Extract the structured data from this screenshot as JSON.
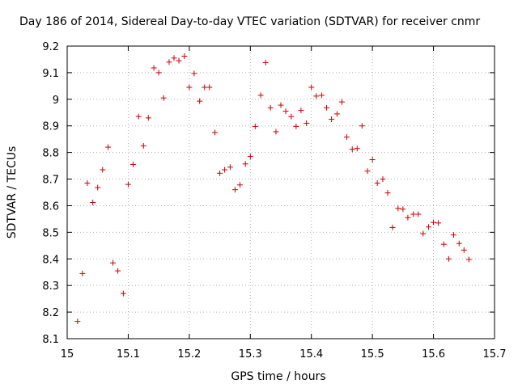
{
  "chart_data": {
    "type": "scatter",
    "title": "Day 186 of 2014, Sidereal Day-to-day VTEC variation (SDTVAR) for receiver cnmr",
    "xlabel": "GPS time / hours",
    "ylabel": "SDTVAR / TECUs",
    "xlim": [
      15.0,
      15.7
    ],
    "ylim": [
      8.1,
      9.2
    ],
    "xticks": [
      15.0,
      15.1,
      15.2,
      15.3,
      15.4,
      15.5,
      15.6,
      15.7
    ],
    "xtick_labels": [
      "15",
      "15.1",
      "15.2",
      "15.3",
      "15.4",
      "15.5",
      "15.6",
      "15.7"
    ],
    "yticks": [
      8.1,
      8.2,
      8.3,
      8.4,
      8.5,
      8.6,
      8.7,
      8.8,
      8.9,
      9.0,
      9.1,
      9.2
    ],
    "ytick_labels": [
      "8.1",
      "8.2",
      "8.3",
      "8.4",
      "8.5",
      "8.6",
      "8.7",
      "8.8",
      "8.9",
      "9",
      "9.1",
      "9.2"
    ],
    "grid": true,
    "marker": "+",
    "color": "#cc0000",
    "series": [
      {
        "name": "SDTVAR",
        "x": [
          15.017,
          15.025,
          15.033,
          15.042,
          15.05,
          15.058,
          15.067,
          15.075,
          15.083,
          15.092,
          15.1,
          15.108,
          15.117,
          15.125,
          15.133,
          15.142,
          15.15,
          15.158,
          15.167,
          15.175,
          15.183,
          15.192,
          15.2,
          15.208,
          15.217,
          15.225,
          15.233,
          15.242,
          15.25,
          15.258,
          15.267,
          15.275,
          15.283,
          15.292,
          15.3,
          15.308,
          15.317,
          15.325,
          15.333,
          15.342,
          15.35,
          15.358,
          15.367,
          15.375,
          15.383,
          15.392,
          15.4,
          15.408,
          15.417,
          15.425,
          15.433,
          15.442,
          15.45,
          15.458,
          15.467,
          15.475,
          15.483,
          15.492,
          15.5,
          15.508,
          15.517,
          15.525,
          15.533,
          15.542,
          15.55,
          15.558,
          15.567,
          15.575,
          15.583,
          15.592,
          15.6,
          15.608,
          15.617,
          15.625,
          15.633,
          15.642,
          15.65,
          15.658
        ],
        "y": [
          8.165,
          8.345,
          8.685,
          8.612,
          8.668,
          8.735,
          8.82,
          8.385,
          8.355,
          8.27,
          8.68,
          8.755,
          8.935,
          8.825,
          8.93,
          9.118,
          9.1,
          9.005,
          9.14,
          9.155,
          9.145,
          9.162,
          9.045,
          9.097,
          8.993,
          9.045,
          9.045,
          8.875,
          8.722,
          8.735,
          8.745,
          8.66,
          8.678,
          8.757,
          8.785,
          8.898,
          9.015,
          9.138,
          8.968,
          8.878,
          8.978,
          8.955,
          8.935,
          8.898,
          8.958,
          8.91,
          9.045,
          9.012,
          9.015,
          8.968,
          8.925,
          8.945,
          8.99,
          8.858,
          8.812,
          8.815,
          8.9,
          8.73,
          8.773,
          8.685,
          8.7,
          8.648,
          8.518,
          8.59,
          8.587,
          8.555,
          8.568,
          8.568,
          8.495,
          8.52,
          8.537,
          8.535,
          8.455,
          8.4,
          8.49,
          8.458,
          8.433,
          8.398
        ]
      }
    ]
  }
}
